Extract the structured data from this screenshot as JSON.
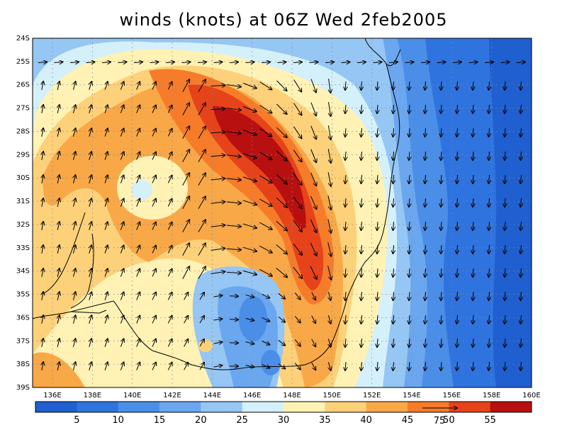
{
  "title": "winds (knots) at 06Z Wed 2feb2005",
  "lat_labels": [
    "24S",
    "25S",
    "26S",
    "27S",
    "28S",
    "29S",
    "30S",
    "31S",
    "32S",
    "33S",
    "34S",
    "35S",
    "36S",
    "37S",
    "38S",
    "39S"
  ],
  "lon_labels": [
    "136E",
    "138E",
    "140E",
    "142E",
    "144E",
    "146E",
    "148E",
    "150E",
    "152E",
    "154E",
    "156E",
    "158E",
    "160E"
  ],
  "colorbar": {
    "labels": [
      "5",
      "10",
      "15",
      "20",
      "25",
      "30",
      "35",
      "40",
      "45",
      "50",
      "55"
    ],
    "colors": [
      "#1f5fcf",
      "#2f73df",
      "#4a8ee8",
      "#6aa7ef",
      "#96c6f4",
      "#d4f0fa",
      "#fff2b4",
      "#fdd17a",
      "#f9a848",
      "#f67c2a",
      "#e6431a",
      "#b81010"
    ],
    "reference_vector_label": "75"
  },
  "field": {
    "variable": "wind speed",
    "units": "knots",
    "shading": "filled contours",
    "vectors": "wind direction arrows",
    "max_region": "27S-33S, 144E-148E",
    "max_speed_band": "55+"
  }
}
